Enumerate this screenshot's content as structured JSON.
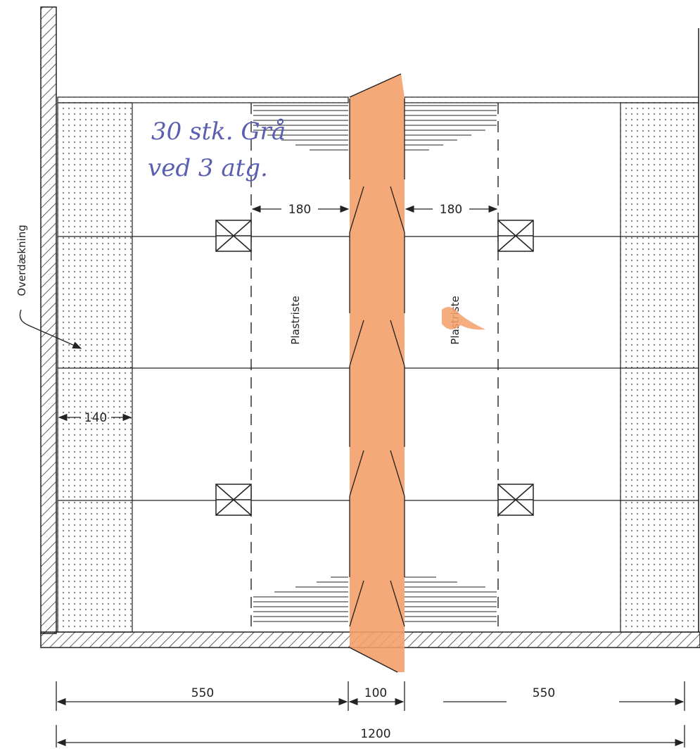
{
  "labels": {
    "dim_550_left": "550",
    "dim_100": "100",
    "dim_550_right": "550",
    "dim_1200": "1200",
    "dim_180_left": "180",
    "dim_180_right": "180",
    "dim_140": "140",
    "plastriste_left": "Plastriste",
    "plastriste_right": "Plastriste",
    "overdaekning": "Overdækning"
  },
  "handwriting": {
    "line1": "30 stk. Grå",
    "line2": "ved 3 atg."
  },
  "colors": {
    "line": "#222222",
    "center_highlight": "#f4a06a",
    "handwriting": "#5a5fb0"
  }
}
